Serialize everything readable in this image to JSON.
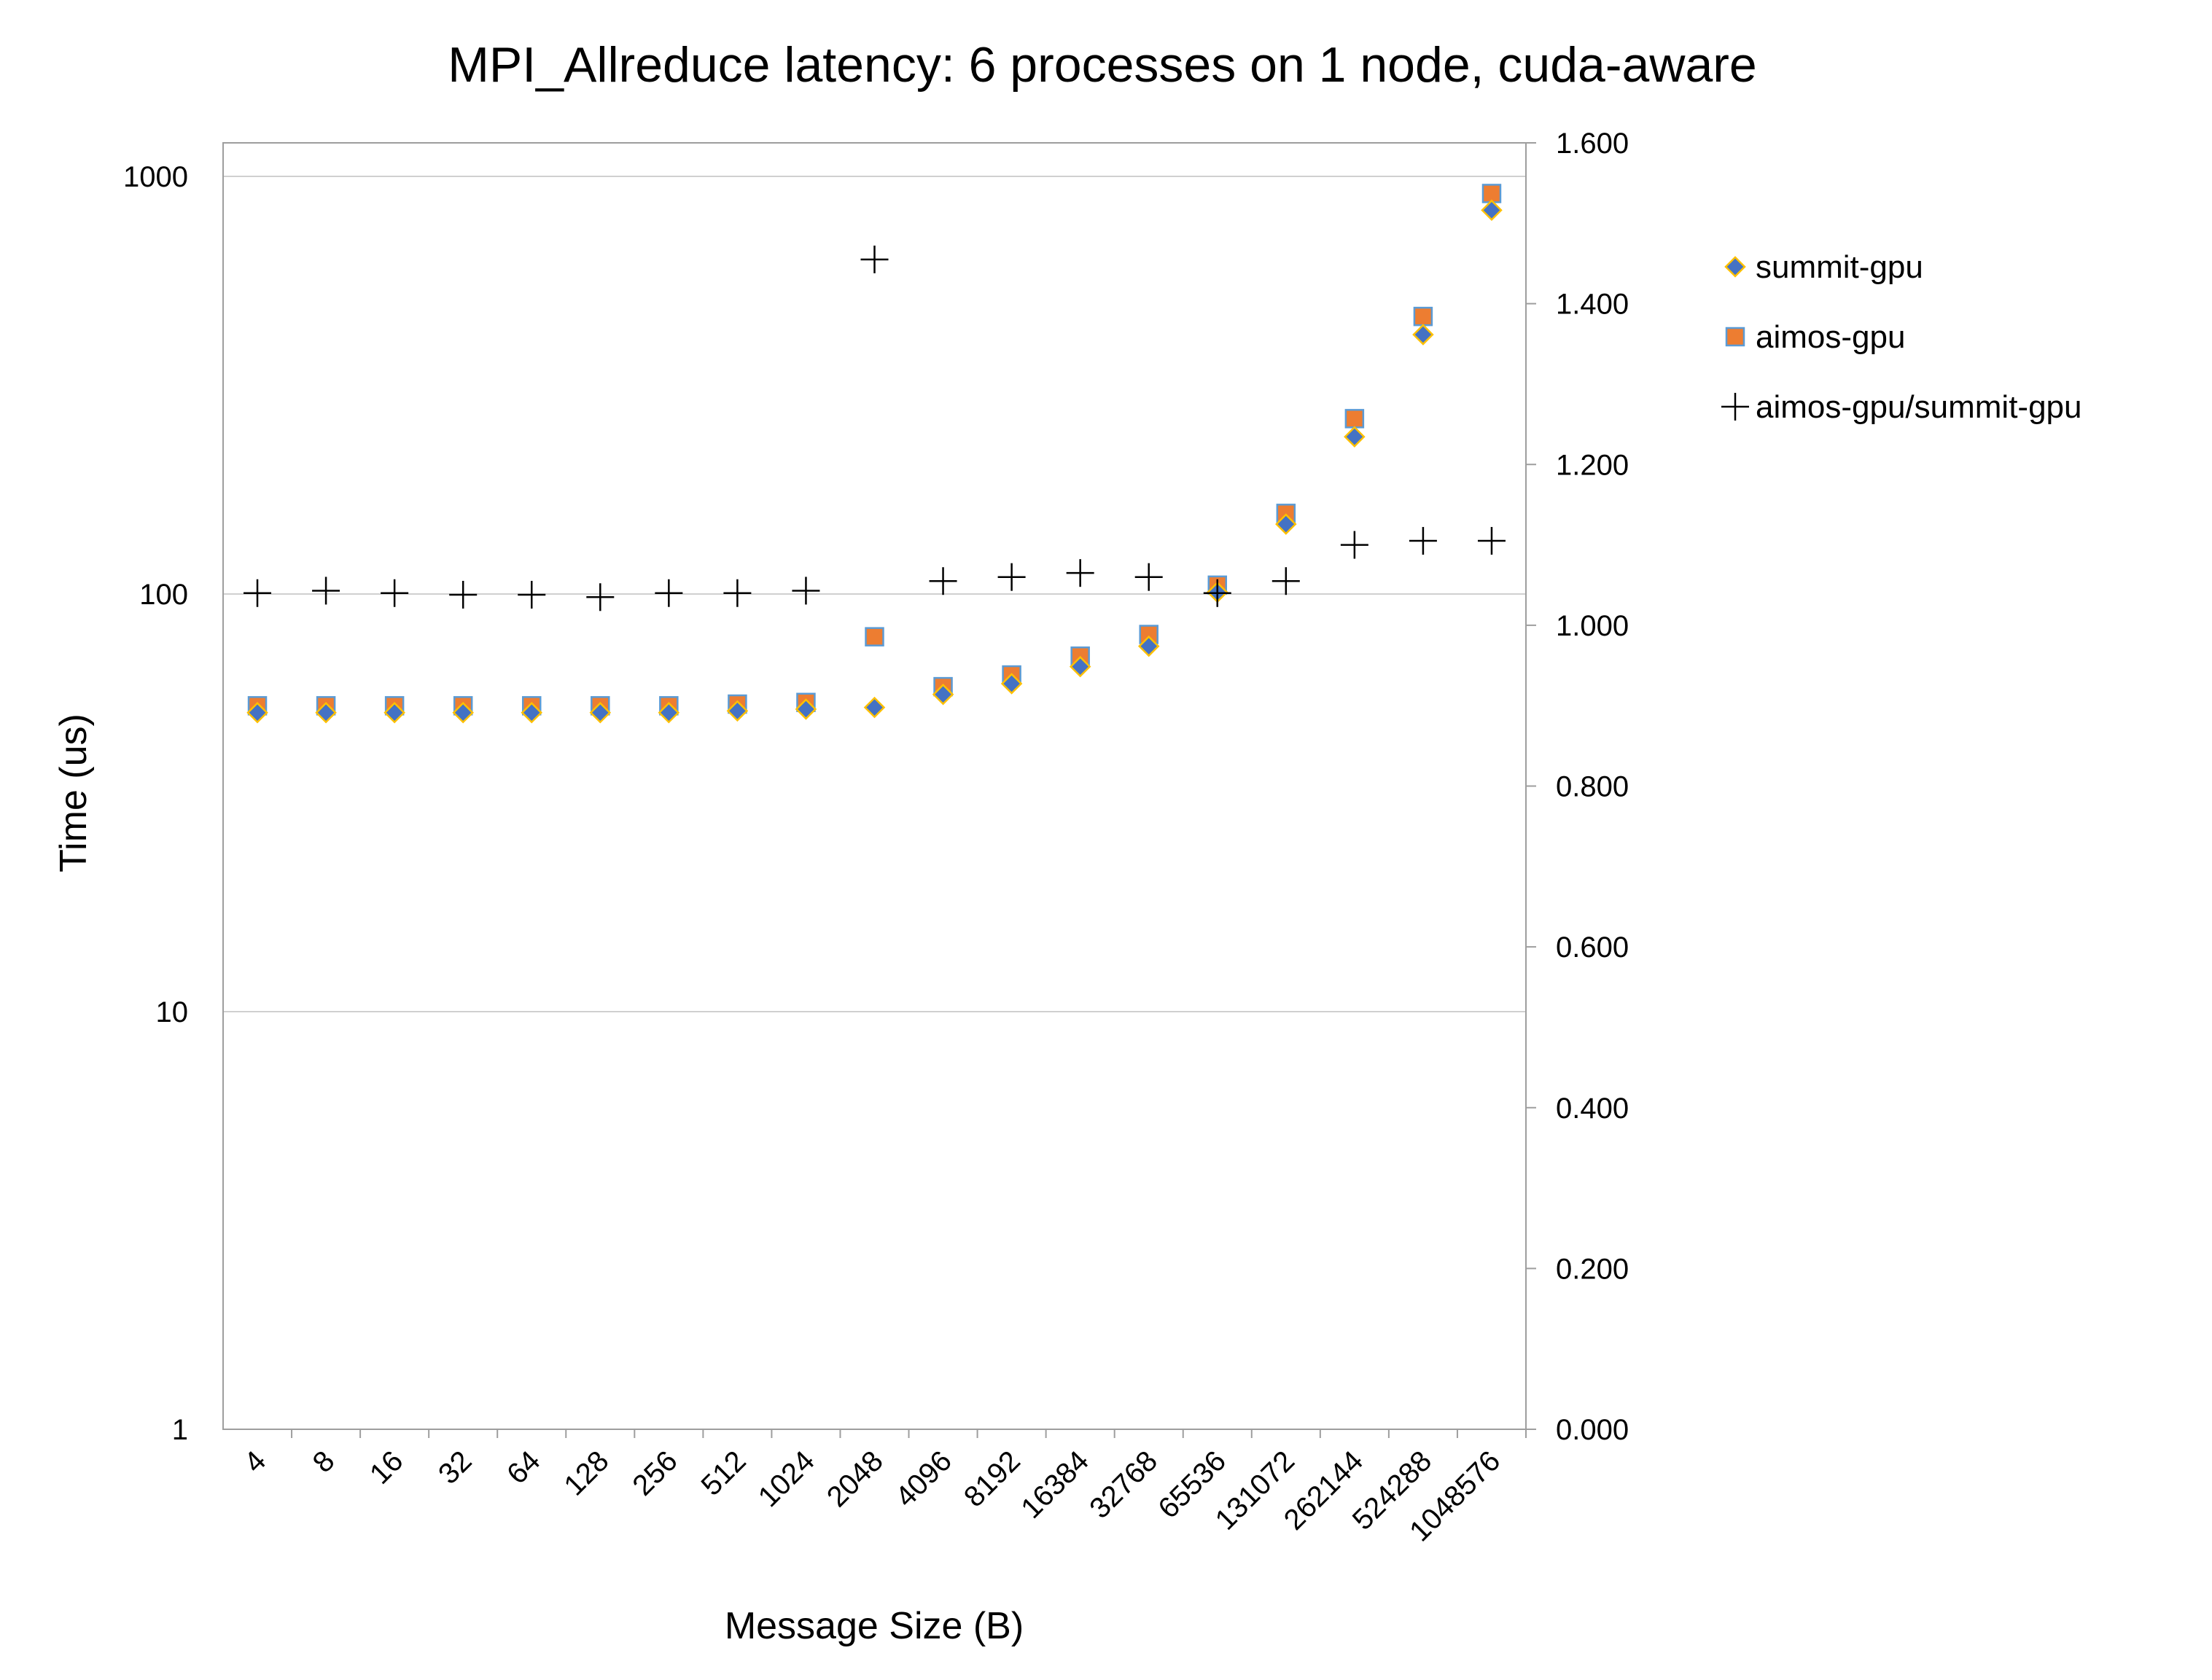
{
  "chart_data": {
    "type": "scatter",
    "title": "MPI_Allreduce latency: 6 processes on 1 node, cuda-aware",
    "xlabel": "Message Size (B)",
    "ylabel": "Time (us)",
    "y2label": "",
    "categories": [
      "4",
      "8",
      "16",
      "32",
      "64",
      "128",
      "256",
      "512",
      "1024",
      "2048",
      "4096",
      "8192",
      "16384",
      "32768",
      "65536",
      "131072",
      "262144",
      "524288",
      "1048576"
    ],
    "yscale": "log",
    "ylim": [
      1,
      1000
    ],
    "y_ticks": [
      "1",
      "10",
      "100",
      "1000"
    ],
    "y2lim": [
      0,
      1.6
    ],
    "y2_ticks": [
      "0.000",
      "0.200",
      "0.400",
      "0.600",
      "0.800",
      "1.000",
      "1.200",
      "1.400",
      "1.600"
    ],
    "grid": "horizontal major lines on primary axis",
    "legend_position": "right",
    "series": [
      {
        "name": "summit-gpu",
        "axis": "primary",
        "marker": "diamond",
        "color": "#4472C4",
        "edge_color": "#FFC000",
        "values": [
          52,
          52,
          52,
          52,
          52,
          52,
          52,
          52.5,
          53,
          53.5,
          57.5,
          61,
          67,
          75,
          101,
          147,
          238,
          418,
          830
        ]
      },
      {
        "name": "aimos-gpu",
        "axis": "primary",
        "marker": "square",
        "color": "#ED7D31",
        "edge_color": "#5B9BD5",
        "values": [
          54,
          54,
          54,
          54,
          54,
          54,
          54,
          54.5,
          55,
          79,
          60,
          64,
          71,
          80,
          105,
          156,
          263,
          462,
          910
        ]
      },
      {
        "name": "aimos-gpu/summit-gpu",
        "axis": "secondary",
        "marker": "plus",
        "color": "#000000",
        "values": [
          1.04,
          1.043,
          1.04,
          1.038,
          1.038,
          1.035,
          1.04,
          1.04,
          1.043,
          1.455,
          1.055,
          1.06,
          1.065,
          1.06,
          1.04,
          1.055,
          1.1,
          1.105,
          1.105
        ]
      }
    ]
  }
}
